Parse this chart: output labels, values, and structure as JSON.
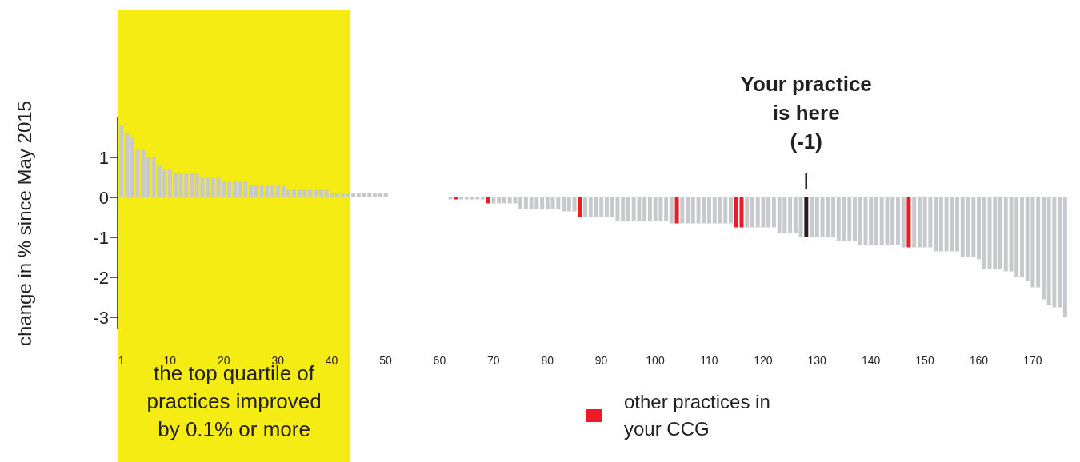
{
  "chart_data": {
    "type": "bar",
    "ylabel": "change in % since May 2015",
    "x": [
      1,
      2,
      3,
      4,
      5,
      6,
      7,
      8,
      9,
      10,
      11,
      12,
      13,
      14,
      15,
      16,
      17,
      18,
      19,
      20,
      21,
      22,
      23,
      24,
      25,
      26,
      27,
      28,
      29,
      30,
      31,
      32,
      33,
      34,
      35,
      36,
      37,
      38,
      39,
      40,
      41,
      42,
      43,
      44,
      45,
      46,
      47,
      48,
      49,
      50,
      51,
      52,
      53,
      54,
      55,
      56,
      57,
      58,
      59,
      60,
      61,
      62,
      63,
      64,
      65,
      66,
      67,
      68,
      69,
      70,
      71,
      72,
      73,
      74,
      75,
      76,
      77,
      78,
      79,
      80,
      81,
      82,
      83,
      84,
      85,
      86,
      87,
      88,
      89,
      90,
      91,
      92,
      93,
      94,
      95,
      96,
      97,
      98,
      99,
      100,
      101,
      102,
      103,
      104,
      105,
      106,
      107,
      108,
      109,
      110,
      111,
      112,
      113,
      114,
      115,
      116,
      117,
      118,
      119,
      120,
      121,
      122,
      123,
      124,
      125,
      126,
      127,
      128,
      129,
      130,
      131,
      132,
      133,
      134,
      135,
      136,
      137,
      138,
      139,
      140,
      141,
      142,
      143,
      144,
      145,
      146,
      147,
      148,
      149,
      150,
      151,
      152,
      153,
      154,
      155,
      156,
      157,
      158,
      159,
      160,
      161,
      162,
      163,
      164,
      165,
      166,
      167,
      168,
      169,
      170,
      171,
      172,
      173,
      174,
      175,
      176
    ],
    "series": [
      {
        "color": "#c8c9cc",
        "values": [
          1.8,
          1.6,
          1.5,
          1.2,
          1.2,
          1.0,
          1.0,
          0.8,
          0.7,
          0.7,
          0.6,
          0.6,
          0.6,
          0.6,
          0.6,
          0.5,
          0.5,
          0.5,
          0.5,
          0.4,
          0.4,
          0.4,
          0.4,
          0.4,
          0.3,
          0.3,
          0.3,
          0.3,
          0.3,
          0.3,
          0.3,
          0.2,
          0.2,
          0.2,
          0.2,
          0.2,
          0.2,
          0.2,
          0.2,
          0.1,
          0.1,
          0.1,
          0.1,
          0.1,
          0.1,
          0.1,
          0.1,
          0.1,
          0.1,
          0.1,
          0,
          0,
          0,
          0,
          0,
          0,
          0,
          0,
          0,
          0,
          0,
          -0.05,
          null,
          -0.05,
          -0.05,
          -0.05,
          -0.05,
          -0.05,
          null,
          -0.15,
          -0.15,
          -0.15,
          -0.15,
          -0.15,
          -0.3,
          -0.3,
          -0.3,
          -0.3,
          -0.3,
          -0.3,
          -0.3,
          -0.3,
          -0.35,
          -0.35,
          -0.35,
          null,
          -0.5,
          -0.5,
          -0.5,
          -0.5,
          -0.5,
          -0.5,
          -0.6,
          -0.6,
          -0.6,
          -0.6,
          -0.6,
          -0.6,
          -0.6,
          -0.6,
          -0.6,
          -0.6,
          -0.65,
          null,
          -0.65,
          -0.65,
          -0.65,
          -0.65,
          -0.65,
          -0.65,
          -0.65,
          -0.65,
          -0.65,
          -0.65,
          null,
          null,
          -0.75,
          -0.75,
          -0.75,
          -0.75,
          -0.75,
          -0.75,
          -0.9,
          -0.9,
          -0.9,
          -0.9,
          -1,
          null,
          -1,
          -1,
          -1,
          -1,
          -1,
          -1.1,
          -1.1,
          -1.1,
          -1.1,
          -1.2,
          -1.2,
          -1.2,
          -1.2,
          -1.2,
          -1.2,
          -1.2,
          -1.2,
          -1.25,
          null,
          -1.25,
          -1.25,
          -1.25,
          -1.25,
          -1.35,
          -1.35,
          -1.35,
          -1.35,
          -1.35,
          -1.5,
          -1.5,
          -1.5,
          -1.55,
          -1.8,
          -1.8,
          -1.8,
          -1.8,
          -1.85,
          -1.85,
          -2.0,
          -2.0,
          -2.1,
          -2.25,
          -2.25,
          -2.55,
          -2.7,
          -2.75,
          -2.75,
          -3.0
        ]
      },
      {
        "name": "other practices in your CCG",
        "color": "#ed1c24",
        "x": [
          63,
          69,
          86,
          104,
          115,
          116,
          147
        ],
        "values": [
          -0.05,
          -0.15,
          -0.5,
          -0.65,
          -0.75,
          -0.75,
          -1.25
        ]
      },
      {
        "color": "#231f20",
        "x": [
          128
        ],
        "values": [
          -1
        ]
      }
    ],
    "xlim": [
      0.3,
      177
    ],
    "xticks": [
      1,
      10,
      20,
      30,
      40,
      50,
      60,
      70,
      80,
      90,
      100,
      110,
      120,
      130,
      140,
      150,
      160,
      170
    ],
    "ylim": [
      -3.3,
      2.0
    ],
    "yticks": [
      1,
      0,
      -1,
      -2,
      -3
    ],
    "bands": [
      {
        "axis": "x",
        "from": 0.3,
        "to": 43.5,
        "label": "the top quartile of practices improved by 0.1% or more",
        "color": "#f5ec14"
      }
    ],
    "annotations": [
      {
        "text": "Your practice\nis here\n(-1)",
        "x": 128,
        "y": 0
      }
    ],
    "legend": "bottom"
  }
}
